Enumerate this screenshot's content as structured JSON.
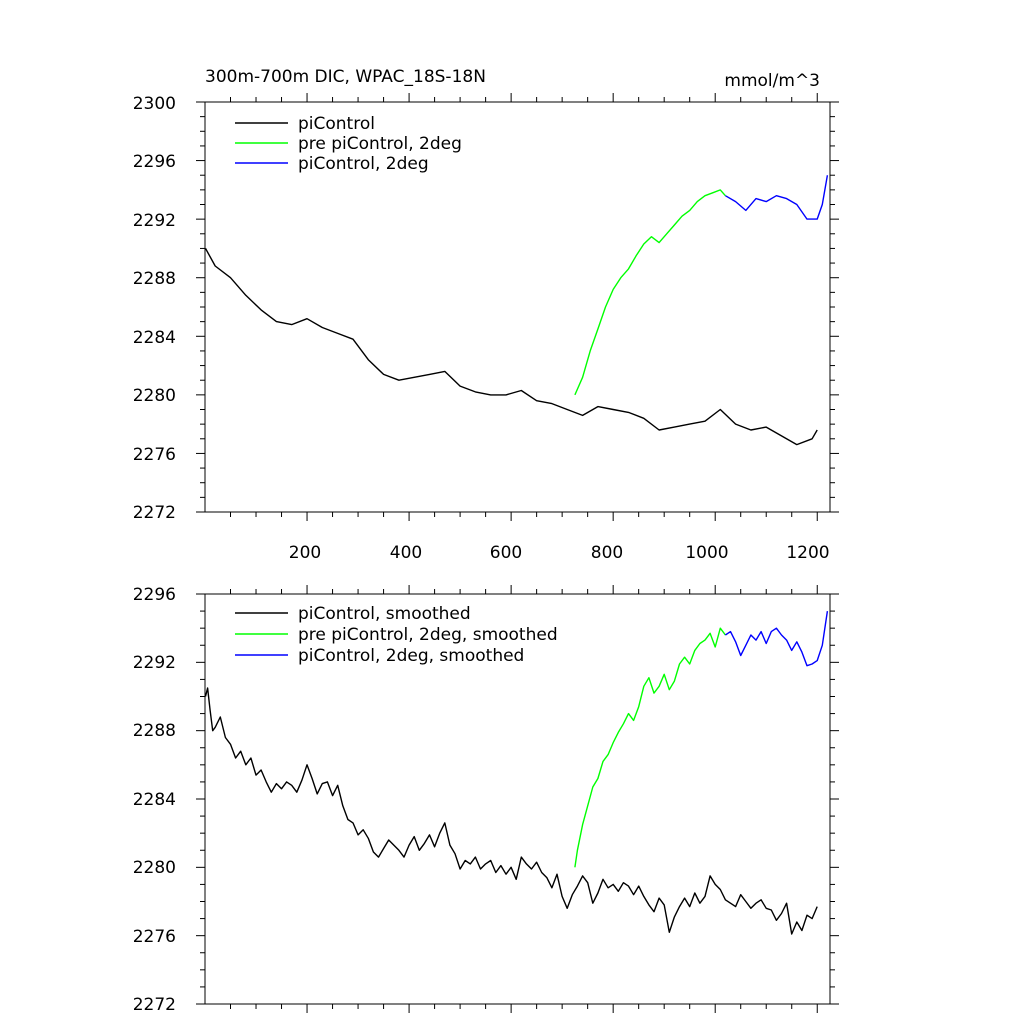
{
  "chart_data": [
    {
      "type": "line",
      "title": "300m-700m DIC, WPAC_18S-18N",
      "units": "mmol/m^3",
      "xlim": [
        0,
        1225
      ],
      "ylim": [
        2272,
        2300
      ],
      "xticks": [
        "200",
        "400",
        "600",
        "800",
        "1000",
        "1200"
      ],
      "yticks": [
        "2272",
        "2276",
        "2280",
        "2284",
        "2288",
        "2292",
        "2296",
        "2300"
      ],
      "legend_position": "top-left",
      "series": [
        {
          "name": "piControl",
          "color": "#000000",
          "x": [
            1,
            20,
            50,
            80,
            110,
            140,
            170,
            200,
            230,
            260,
            290,
            320,
            350,
            380,
            410,
            440,
            470,
            500,
            530,
            560,
            590,
            620,
            650,
            680,
            710,
            740,
            770,
            800,
            830,
            860,
            890,
            920,
            950,
            980,
            1010,
            1040,
            1070,
            1100,
            1130,
            1160,
            1190,
            1200
          ],
          "y": [
            2290.0,
            2288.8,
            2288.0,
            2286.8,
            2285.8,
            2285.0,
            2284.8,
            2285.2,
            2284.6,
            2284.2,
            2283.8,
            2282.4,
            2281.4,
            2281.0,
            2281.2,
            2281.4,
            2281.6,
            2280.6,
            2280.2,
            2280.0,
            2280.0,
            2280.3,
            2279.6,
            2279.4,
            2279.0,
            2278.6,
            2279.2,
            2279.0,
            2278.8,
            2278.4,
            2277.6,
            2277.8,
            2278.0,
            2278.2,
            2279.0,
            2278.0,
            2277.6,
            2277.8,
            2277.2,
            2276.6,
            2277.0,
            2277.6
          ]
        },
        {
          "name": "pre piControl, 2deg",
          "color": "#00ff00",
          "x": [
            725,
            740,
            755,
            770,
            785,
            800,
            815,
            830,
            845,
            860,
            875,
            890,
            905,
            920,
            935,
            950,
            965,
            980,
            995,
            1010,
            1020
          ],
          "y": [
            2280.0,
            2281.2,
            2283.0,
            2284.5,
            2286.0,
            2287.2,
            2288.0,
            2288.6,
            2289.5,
            2290.3,
            2290.8,
            2290.4,
            2291.0,
            2291.6,
            2292.2,
            2292.6,
            2293.2,
            2293.6,
            2293.8,
            2294.0,
            2293.6
          ]
        },
        {
          "name": "piControl, 2deg",
          "color": "#0000ff",
          "x": [
            1020,
            1040,
            1060,
            1080,
            1100,
            1120,
            1140,
            1160,
            1180,
            1200,
            1210,
            1220
          ],
          "y": [
            2293.6,
            2293.2,
            2292.6,
            2293.4,
            2293.2,
            2293.6,
            2293.4,
            2293.0,
            2292.0,
            2292.0,
            2293.0,
            2295.0
          ]
        }
      ]
    },
    {
      "type": "line",
      "title": "",
      "xlim": [
        0,
        1225
      ],
      "ylim": [
        2272,
        2296
      ],
      "yticks": [
        "2272",
        "2276",
        "2280",
        "2284",
        "2288",
        "2292",
        "2296"
      ],
      "legend_position": "top-left",
      "series": [
        {
          "name": "piControl, smoothed",
          "color": "#000000",
          "x": [
            1,
            5,
            10,
            15,
            20,
            30,
            40,
            50,
            60,
            70,
            80,
            90,
            100,
            110,
            120,
            130,
            140,
            150,
            160,
            170,
            180,
            190,
            200,
            210,
            220,
            230,
            240,
            250,
            260,
            270,
            280,
            290,
            300,
            310,
            320,
            330,
            340,
            350,
            360,
            370,
            380,
            390,
            400,
            410,
            420,
            430,
            440,
            450,
            460,
            470,
            480,
            490,
            500,
            510,
            520,
            530,
            540,
            550,
            560,
            570,
            580,
            590,
            600,
            610,
            620,
            630,
            640,
            650,
            660,
            670,
            680,
            690,
            700,
            710,
            720,
            730,
            740,
            750,
            760,
            770,
            780,
            790,
            800,
            810,
            820,
            830,
            840,
            850,
            860,
            870,
            880,
            890,
            900,
            910,
            920,
            930,
            940,
            950,
            960,
            970,
            980,
            990,
            1000,
            1010,
            1020,
            1030,
            1040,
            1050,
            1060,
            1070,
            1080,
            1090,
            1100,
            1110,
            1120,
            1130,
            1140,
            1150,
            1160,
            1170,
            1180,
            1190,
            1200
          ],
          "y": [
            2290.0,
            2290.5,
            2289.2,
            2288.0,
            2288.2,
            2288.8,
            2287.6,
            2287.2,
            2286.4,
            2286.8,
            2286.0,
            2286.4,
            2285.4,
            2285.7,
            2285.0,
            2284.4,
            2284.9,
            2284.6,
            2285.0,
            2284.8,
            2284.4,
            2285.1,
            2286.0,
            2285.2,
            2284.3,
            2284.9,
            2285.0,
            2284.2,
            2284.8,
            2283.6,
            2282.8,
            2282.6,
            2281.9,
            2282.2,
            2281.7,
            2280.9,
            2280.6,
            2281.1,
            2281.6,
            2281.3,
            2281.0,
            2280.6,
            2281.3,
            2281.8,
            2281.0,
            2281.4,
            2281.9,
            2281.2,
            2282.0,
            2282.6,
            2281.3,
            2280.8,
            2279.9,
            2280.4,
            2280.2,
            2280.6,
            2279.9,
            2280.2,
            2280.4,
            2279.7,
            2280.1,
            2279.6,
            2280.0,
            2279.3,
            2280.6,
            2280.2,
            2279.9,
            2280.3,
            2279.7,
            2279.4,
            2278.8,
            2279.6,
            2278.3,
            2277.6,
            2278.4,
            2278.9,
            2279.5,
            2279.1,
            2277.9,
            2278.5,
            2279.3,
            2278.8,
            2279.0,
            2278.6,
            2279.1,
            2278.9,
            2278.4,
            2278.9,
            2278.3,
            2277.8,
            2277.4,
            2278.2,
            2277.8,
            2276.2,
            2277.1,
            2277.7,
            2278.2,
            2277.7,
            2278.5,
            2277.9,
            2278.3,
            2279.5,
            2279.0,
            2278.7,
            2278.1,
            2277.9,
            2277.7,
            2278.4,
            2278.0,
            2277.6,
            2277.9,
            2278.1,
            2277.6,
            2277.5,
            2276.9,
            2277.3,
            2277.9,
            2276.1,
            2276.8,
            2276.3,
            2277.2,
            2277.0,
            2277.7
          ]
        },
        {
          "name": "pre piControl, 2deg, smoothed",
          "color": "#00ff00",
          "x": [
            725,
            730,
            740,
            750,
            760,
            770,
            780,
            790,
            800,
            810,
            820,
            830,
            840,
            850,
            860,
            870,
            880,
            890,
            900,
            910,
            920,
            930,
            940,
            950,
            960,
            970,
            980,
            990,
            1000,
            1010,
            1020
          ],
          "y": [
            2280.0,
            2281.0,
            2282.5,
            2283.6,
            2284.7,
            2285.2,
            2286.2,
            2286.6,
            2287.3,
            2287.9,
            2288.4,
            2289.0,
            2288.6,
            2289.4,
            2290.6,
            2291.1,
            2290.2,
            2290.6,
            2291.3,
            2290.4,
            2290.9,
            2291.9,
            2292.3,
            2291.9,
            2292.7,
            2293.1,
            2293.3,
            2293.7,
            2292.9,
            2294.0,
            2293.6
          ]
        },
        {
          "name": "piControl, 2deg, smoothed",
          "color": "#0000ff",
          "x": [
            1020,
            1030,
            1040,
            1050,
            1060,
            1070,
            1080,
            1090,
            1100,
            1110,
            1120,
            1130,
            1140,
            1150,
            1160,
            1170,
            1180,
            1190,
            1200,
            1210,
            1220
          ],
          "y": [
            2293.6,
            2293.8,
            2293.2,
            2292.4,
            2293.0,
            2293.6,
            2293.3,
            2293.8,
            2293.1,
            2293.8,
            2294.0,
            2293.6,
            2293.3,
            2292.7,
            2293.2,
            2292.6,
            2291.8,
            2291.9,
            2292.1,
            2293.0,
            2295.0
          ]
        }
      ]
    }
  ]
}
